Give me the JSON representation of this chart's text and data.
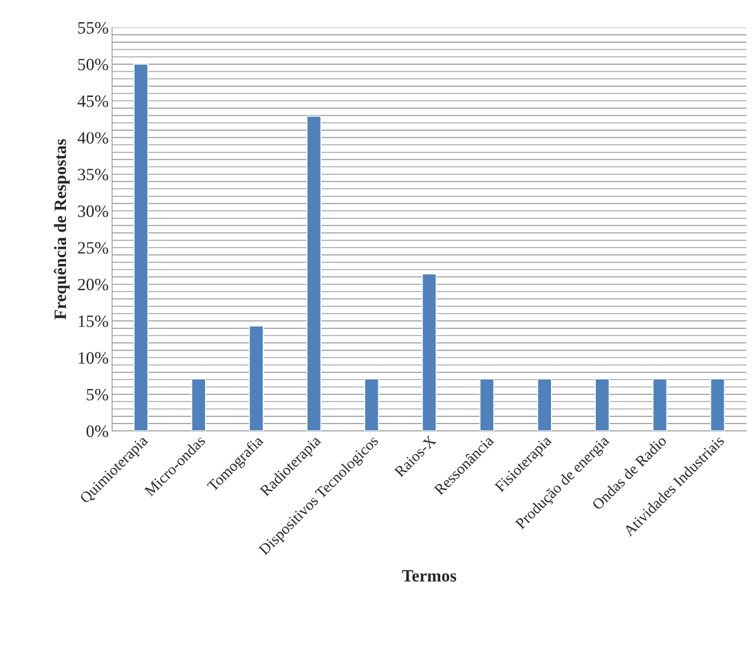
{
  "chart_data": {
    "type": "bar",
    "xlabel": "Termos",
    "ylabel": "Frequência de Respostas",
    "categories": [
      "Quimioterapia",
      "Micro-ondas",
      "Tomografia",
      "Radioterapia",
      "Dispositivos Tecnologicos",
      "Raios-X",
      "Ressonância",
      "Fisioterapia",
      "Produção de energia",
      "Ondas de Radio",
      "Atividades Industriais"
    ],
    "values": [
      50,
      7.1,
      14.3,
      42.9,
      7.1,
      21.4,
      7.1,
      7.1,
      7.1,
      7.1,
      7.1
    ],
    "color": "#4f81bd",
    "ylim": [
      0,
      55
    ],
    "yticks": [
      {
        "value": 0,
        "label": "0%"
      },
      {
        "value": 1,
        "label": null
      },
      {
        "value": 2,
        "label": null
      },
      {
        "value": 3,
        "label": null
      },
      {
        "value": 4,
        "label": null
      },
      {
        "value": 5,
        "label": "5%"
      },
      {
        "value": 6,
        "label": null
      },
      {
        "value": 7,
        "label": null
      },
      {
        "value": 8,
        "label": null
      },
      {
        "value": 9,
        "label": null
      },
      {
        "value": 10,
        "label": "10%"
      },
      {
        "value": 11,
        "label": null
      },
      {
        "value": 12,
        "label": null
      },
      {
        "value": 13,
        "label": null
      },
      {
        "value": 14,
        "label": null
      },
      {
        "value": 15,
        "label": "15%"
      },
      {
        "value": 16,
        "label": null
      },
      {
        "value": 17,
        "label": null
      },
      {
        "value": 18,
        "label": null
      },
      {
        "value": 19,
        "label": null
      },
      {
        "value": 20,
        "label": "20%"
      },
      {
        "value": 21,
        "label": null
      },
      {
        "value": 22,
        "label": null
      },
      {
        "value": 23,
        "label": null
      },
      {
        "value": 24,
        "label": null
      },
      {
        "value": 25,
        "label": "25%"
      },
      {
        "value": 26,
        "label": null
      },
      {
        "value": 27,
        "label": null
      },
      {
        "value": 28,
        "label": null
      },
      {
        "value": 29,
        "label": null
      },
      {
        "value": 30,
        "label": "30%"
      },
      {
        "value": 31,
        "label": null
      },
      {
        "value": 32,
        "label": null
      },
      {
        "value": 33,
        "label": null
      },
      {
        "value": 34,
        "label": null
      },
      {
        "value": 35,
        "label": "35%"
      },
      {
        "value": 36,
        "label": null
      },
      {
        "value": 37,
        "label": null
      },
      {
        "value": 38,
        "label": null
      },
      {
        "value": 39,
        "label": null
      },
      {
        "value": 40,
        "label": "40%"
      },
      {
        "value": 41,
        "label": null
      },
      {
        "value": 42,
        "label": null
      },
      {
        "value": 43,
        "label": null
      },
      {
        "value": 44,
        "label": null
      },
      {
        "value": 45,
        "label": "45%"
      },
      {
        "value": 46,
        "label": null
      },
      {
        "value": 47,
        "label": null
      },
      {
        "value": 48,
        "label": null
      },
      {
        "value": 49,
        "label": null
      },
      {
        "value": 50,
        "label": "50%"
      },
      {
        "value": 51,
        "label": null
      },
      {
        "value": 52,
        "label": null
      },
      {
        "value": 53,
        "label": null
      },
      {
        "value": 54,
        "label": null
      },
      {
        "value": 55,
        "label": "55%"
      }
    ],
    "grid": "y",
    "legend": false
  }
}
